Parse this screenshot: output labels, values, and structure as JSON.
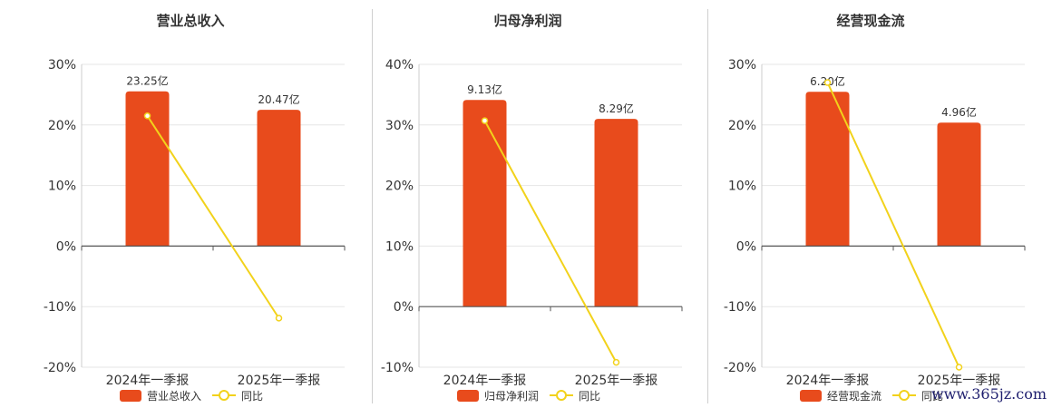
{
  "chart_data": [
    {
      "type": "bar",
      "title": "营业总收入",
      "categories": [
        "2024年一季报",
        "2025年一季报"
      ],
      "series": [
        {
          "name": "营业总收入",
          "kind": "bar",
          "values": [
            23.25,
            20.47
          ],
          "labels": [
            "23.25亿",
            "20.47亿"
          ],
          "color": "#e84b1c"
        },
        {
          "name": "同比",
          "kind": "line",
          "values": [
            21.5,
            -11.9
          ],
          "color": "#f2d21b"
        }
      ],
      "yticks": [
        30,
        20,
        10,
        0,
        -10,
        -20
      ],
      "ytick_labels": [
        "30%",
        "20%",
        "10%",
        "0%",
        "-10%",
        "-20%"
      ],
      "ylim": [
        -20,
        30
      ],
      "bar_scale_max": 27.3,
      "legend_position": "bottom"
    },
    {
      "type": "bar",
      "title": "归母净利润",
      "categories": [
        "2024年一季报",
        "2025年一季报"
      ],
      "series": [
        {
          "name": "归母净利润",
          "kind": "bar",
          "values": [
            9.13,
            8.29
          ],
          "labels": [
            "9.13亿",
            "8.29亿"
          ],
          "color": "#e84b1c"
        },
        {
          "name": "同比",
          "kind": "line",
          "values": [
            30.7,
            -9.2
          ],
          "color": "#f2d21b"
        }
      ],
      "yticks": [
        40,
        30,
        20,
        10,
        0,
        -10
      ],
      "ytick_labels": [
        "40%",
        "30%",
        "20%",
        "10%",
        "0%",
        "-10%"
      ],
      "ylim": [
        -10,
        40
      ],
      "bar_scale_max": 10.7,
      "legend_position": "bottom"
    },
    {
      "type": "bar",
      "title": "经营现金流",
      "categories": [
        "2024年一季报",
        "2025年一季报"
      ],
      "series": [
        {
          "name": "经营现金流",
          "kind": "bar",
          "values": [
            6.2,
            4.96
          ],
          "labels": [
            "6.20亿",
            "4.96亿"
          ],
          "color": "#e84b1c"
        },
        {
          "name": "同比",
          "kind": "line",
          "values": [
            27.0,
            -20.0
          ],
          "color": "#f2d21b"
        }
      ],
      "yticks": [
        30,
        20,
        10,
        0,
        -10,
        -20
      ],
      "ytick_labels": [
        "30%",
        "20%",
        "10%",
        "0%",
        "-10%",
        "-20%"
      ],
      "ylim": [
        -20,
        30
      ],
      "bar_scale_max": 7.3,
      "legend_position": "bottom"
    }
  ],
  "watermark": "www.365jz.com"
}
